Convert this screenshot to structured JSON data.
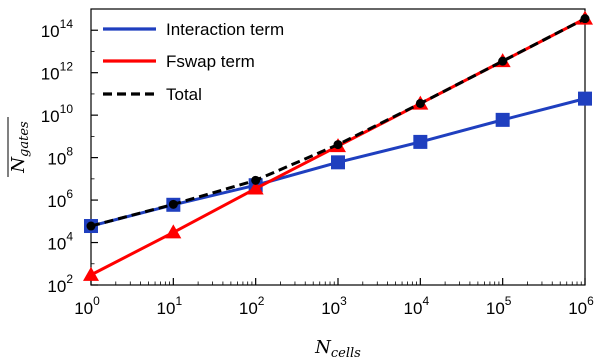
{
  "chart_data": {
    "type": "line",
    "xscale": "log",
    "yscale": "log",
    "xlabel": {
      "base": "N",
      "sub": "cells"
    },
    "ylabel": {
      "base": "N",
      "sub": "gates",
      "overline": true
    },
    "xlim": [
      1,
      1000000
    ],
    "ylim": [
      100,
      1000000000000000
    ],
    "x": [
      1,
      10,
      100,
      1000,
      10000,
      100000,
      1000000
    ],
    "x_ticks": [
      {
        "base": "10",
        "exp": "0"
      },
      {
        "base": "10",
        "exp": "1"
      },
      {
        "base": "10",
        "exp": "2"
      },
      {
        "base": "10",
        "exp": "3"
      },
      {
        "base": "10",
        "exp": "4"
      },
      {
        "base": "10",
        "exp": "5"
      },
      {
        "base": "10",
        "exp": "6"
      }
    ],
    "y_ticks": [
      {
        "base": "10",
        "exp": "2",
        "value": 100
      },
      {
        "base": "10",
        "exp": "4",
        "value": 10000
      },
      {
        "base": "10",
        "exp": "6",
        "value": 1000000
      },
      {
        "base": "10",
        "exp": "8",
        "value": 100000000
      },
      {
        "base": "10",
        "exp": "10",
        "value": 10000000000
      },
      {
        "base": "10",
        "exp": "12",
        "value": 1000000000000
      },
      {
        "base": "10",
        "exp": "14",
        "value": 100000000000000
      }
    ],
    "legend_position": "top-left",
    "grid": false,
    "series": [
      {
        "name": "Interaction term",
        "color": "#1f3fbf",
        "marker": "square",
        "dash": "solid",
        "values": [
          60000,
          600000,
          5000000,
          60000000,
          550000000,
          6000000000,
          60000000000
        ]
      },
      {
        "name": "Fswap term",
        "color": "#ff0000",
        "marker": "triangle",
        "dash": "solid",
        "values": [
          300,
          30000,
          3500000,
          350000000,
          35000000000,
          3500000000000,
          350000000000000
        ]
      },
      {
        "name": "Total",
        "color": "#000000",
        "marker": "circle",
        "dash": "dashed",
        "values": [
          60000,
          630000,
          8500000,
          410000000,
          35500000000,
          3500000000000,
          350000000000000
        ]
      }
    ]
  }
}
